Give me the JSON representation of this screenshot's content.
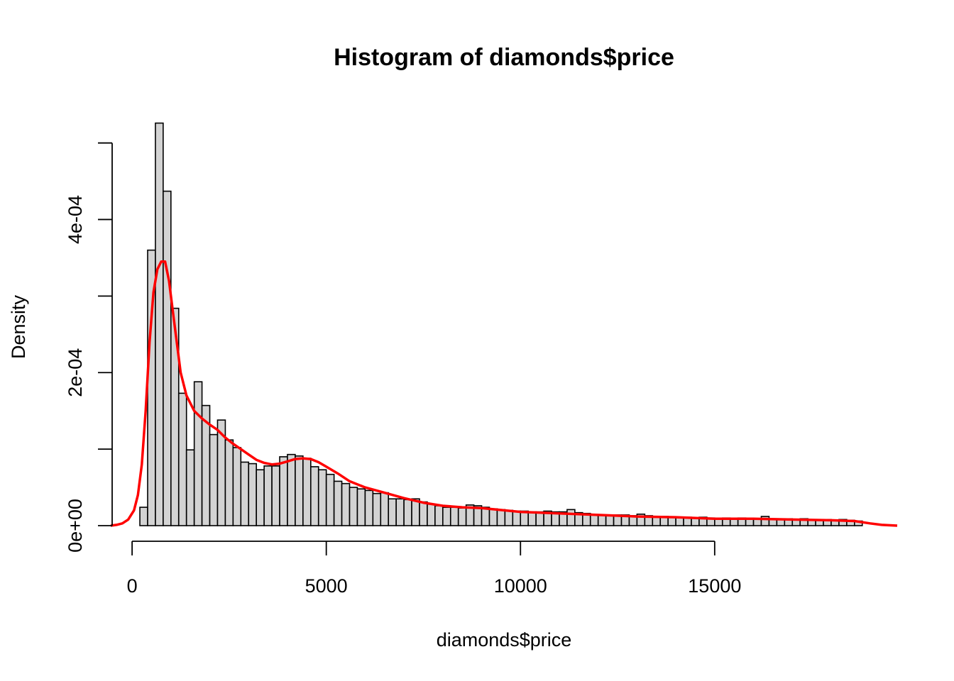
{
  "chart_data": {
    "type": "bar",
    "title": "Histogram of diamonds$price",
    "xlabel": "diamonds$price",
    "ylabel": "Density",
    "xlim": [
      -550,
      19700
    ],
    "ylim": [
      0,
      0.00052
    ],
    "x_ticks": [
      0,
      5000,
      10000,
      15000
    ],
    "x_tick_labels": [
      "0",
      "5000",
      "10000",
      "15000"
    ],
    "y_ticks": [
      0,
      0.0001,
      0.0002,
      0.0003,
      0.0004,
      0.0005
    ],
    "y_tick_labels": [
      "0e+00",
      "",
      "2e-04",
      "",
      "4e-04",
      ""
    ],
    "grid": false,
    "bin_width": 200,
    "bin_start": 200,
    "bar_color": "#d3d3d3",
    "density_color": "#ff0000",
    "series": [
      {
        "values": [
          2.4e-05,
          0.00036,
          0.000526,
          0.000437,
          0.000284,
          0.000173,
          9.9e-05,
          0.000188,
          0.000157,
          0.000119,
          0.000138,
          0.000112,
          0.000102,
          8.3e-05,
          8.1e-05,
          7.3e-05,
          7.8e-05,
          7.8e-05,
          9e-05,
          9.3e-05,
          9.1e-05,
          8.8e-05,
          7.7e-05,
          7.3e-05,
          6.7e-05,
          5.8e-05,
          5.5e-05,
          5e-05,
          4.8e-05,
          4.6e-05,
          4.2e-05,
          4.3e-05,
          3.5e-05,
          3.5e-05,
          3.4e-05,
          3.5e-05,
          3.1e-05,
          2.8e-05,
          2.6e-05,
          2.4e-05,
          2.4e-05,
          2.3e-05,
          2.7e-05,
          2.6e-05,
          2.4e-05,
          2.2e-05,
          2.1e-05,
          2e-05,
          1.9e-05,
          1.9e-05,
          1.8e-05,
          1.8e-05,
          1.9e-05,
          1.8e-05,
          1.8e-05,
          2.1e-05,
          1.7e-05,
          1.6e-05,
          1.4e-05,
          1.4e-05,
          1.3e-05,
          1.4e-05,
          1.4e-05,
          1.3e-05,
          1.5e-05,
          1.3e-05,
          1.2e-05,
          1.2e-05,
          1.1e-05,
          1.1e-05,
          1.1e-05,
          1e-05,
          1.1e-05,
          1e-05,
          9e-06,
          1e-05,
          9e-06,
          1e-05,
          9e-06,
          9e-06,
          1.2e-05,
          9e-06,
          8e-06,
          9e-06,
          8e-06,
          9e-06,
          7e-06,
          8e-06,
          8e-06,
          7e-06,
          8e-06,
          7e-06,
          6e-06
        ]
      },
      {
        "type": "line",
        "x": [
          -550,
          -400,
          -250,
          -100,
          50,
          150,
          250,
          350,
          450,
          550,
          650,
          750,
          850,
          950,
          1050,
          1150,
          1250,
          1400,
          1600,
          1800,
          2000,
          2200,
          2400,
          2600,
          2800,
          3000,
          3200,
          3400,
          3600,
          3800,
          4000,
          4200,
          4400,
          4600,
          4800,
          5000,
          5300,
          5600,
          6000,
          6500,
          7000,
          7500,
          8000,
          8500,
          9000,
          10000,
          11000,
          12000,
          13000,
          14000,
          15000,
          16000,
          17000,
          18000,
          18600,
          19000,
          19300,
          19700
        ],
        "y": [
          0.0,
          1e-06,
          3e-06,
          8e-06,
          2e-05,
          4e-05,
          8e-05,
          0.00015,
          0.00024,
          0.000305,
          0.000335,
          0.000345,
          0.000345,
          0.00032,
          0.00028,
          0.00024,
          0.0002,
          0.00017,
          0.00015,
          0.00014,
          0.000132,
          0.000125,
          0.000115,
          0.000107,
          0.0001,
          9.3e-05,
          8.6e-05,
          8.2e-05,
          8e-05,
          8.1e-05,
          8.4e-05,
          8.7e-05,
          8.8e-05,
          8.7e-05,
          8.3e-05,
          7.7e-05,
          6.8e-05,
          5.8e-05,
          5e-05,
          4.3e-05,
          3.6e-05,
          3e-05,
          2.6e-05,
          2.4e-05,
          2.3e-05,
          1.8e-05,
          1.6e-05,
          1.4e-05,
          1.2e-05,
          1.1e-05,
          9e-06,
          9e-06,
          8e-06,
          7e-06,
          6e-06,
          3e-06,
          1e-06,
          0.0
        ]
      }
    ]
  }
}
